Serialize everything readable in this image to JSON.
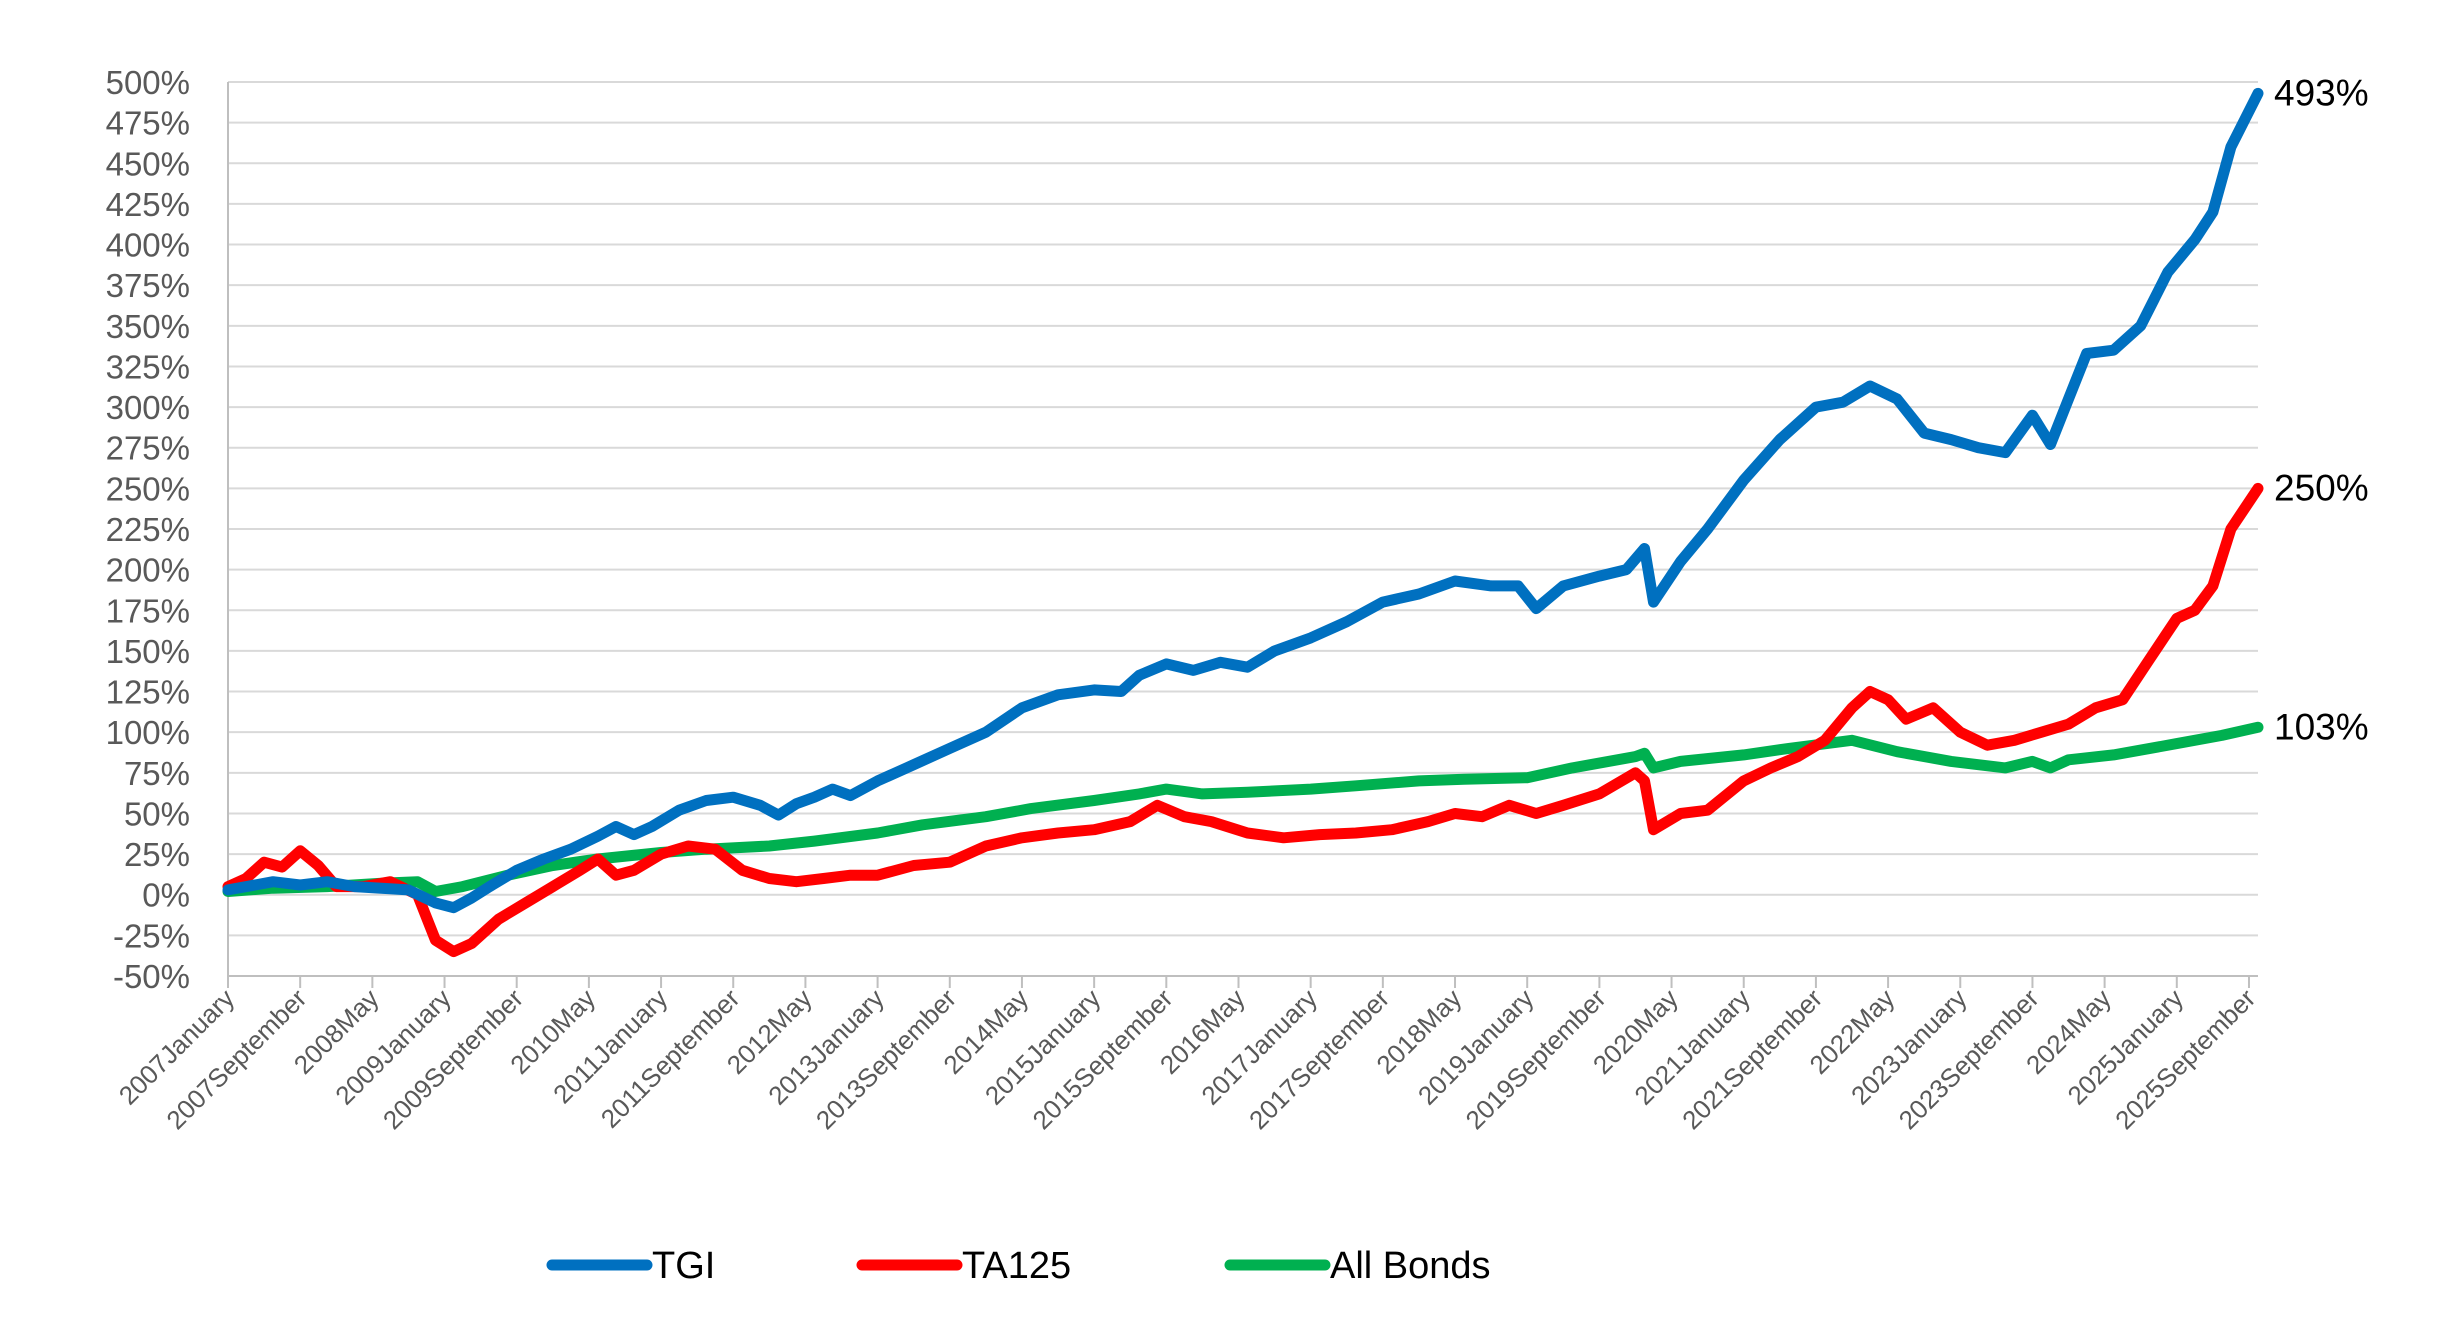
{
  "chart_data": {
    "type": "line",
    "title": "",
    "xlabel": "",
    "ylabel": "",
    "ylim": [
      -50,
      500
    ],
    "y_ticks": [
      "500%",
      "475%",
      "450%",
      "425%",
      "400%",
      "375%",
      "350%",
      "325%",
      "300%",
      "275%",
      "250%",
      "225%",
      "200%",
      "175%",
      "150%",
      "125%",
      "100%",
      "75%",
      "50%",
      "25%",
      "0%",
      "-25%",
      "-50%"
    ],
    "x_range": [
      "2007-01",
      "2025-10"
    ],
    "x_tick_labels": [
      "2007January",
      "2007September",
      "2008May",
      "2009January",
      "2009September",
      "2010May",
      "2011January",
      "2011September",
      "2012May",
      "2013January",
      "2013September",
      "2014May",
      "2015January",
      "2015September",
      "2016May",
      "2017January",
      "2017September",
      "2018May",
      "2019January",
      "2019September",
      "2020May",
      "2021January",
      "2021September",
      "2022May",
      "2023January",
      "2023September",
      "2024May",
      "2025January",
      "2025September"
    ],
    "grid": true,
    "legend_position": "bottom",
    "colors": {
      "TGI": "#0070C0",
      "TA125": "#FF0000",
      "All Bonds": "#00B050"
    },
    "series": [
      {
        "name": "TGI",
        "end_label": "493%",
        "points": [
          [
            "2007-01",
            3
          ],
          [
            "2007-06",
            8
          ],
          [
            "2007-09",
            6
          ],
          [
            "2007-12",
            8
          ],
          [
            "2008-03",
            5
          ],
          [
            "2008-06",
            4
          ],
          [
            "2008-09",
            3
          ],
          [
            "2008-12",
            -5
          ],
          [
            "2009-02",
            -8
          ],
          [
            "2009-04",
            -2
          ],
          [
            "2009-06",
            5
          ],
          [
            "2009-09",
            15
          ],
          [
            "2009-12",
            22
          ],
          [
            "2010-03",
            28
          ],
          [
            "2010-06",
            36
          ],
          [
            "2010-08",
            42
          ],
          [
            "2010-10",
            37
          ],
          [
            "2010-12",
            42
          ],
          [
            "2011-03",
            52
          ],
          [
            "2011-06",
            58
          ],
          [
            "2011-09",
            60
          ],
          [
            "2011-12",
            55
          ],
          [
            "2012-02",
            49
          ],
          [
            "2012-04",
            56
          ],
          [
            "2012-06",
            60
          ],
          [
            "2012-08",
            65
          ],
          [
            "2012-10",
            61
          ],
          [
            "2013-01",
            70
          ],
          [
            "2013-05",
            80
          ],
          [
            "2013-09",
            90
          ],
          [
            "2014-01",
            100
          ],
          [
            "2014-05",
            115
          ],
          [
            "2014-09",
            123
          ],
          [
            "2015-01",
            126
          ],
          [
            "2015-04",
            125
          ],
          [
            "2015-06",
            135
          ],
          [
            "2015-09",
            142
          ],
          [
            "2015-12",
            138
          ],
          [
            "2016-03",
            143
          ],
          [
            "2016-06",
            140
          ],
          [
            "2016-09",
            150
          ],
          [
            "2017-01",
            158
          ],
          [
            "2017-05",
            168
          ],
          [
            "2017-09",
            180
          ],
          [
            "2018-01",
            185
          ],
          [
            "2018-05",
            193
          ],
          [
            "2018-09",
            190
          ],
          [
            "2018-12",
            190
          ],
          [
            "2019-02",
            176
          ],
          [
            "2019-05",
            190
          ],
          [
            "2019-09",
            196
          ],
          [
            "2019-12",
            200
          ],
          [
            "2020-02",
            213
          ],
          [
            "2020-03",
            180
          ],
          [
            "2020-06",
            205
          ],
          [
            "2020-09",
            225
          ],
          [
            "2021-01",
            255
          ],
          [
            "2021-05",
            280
          ],
          [
            "2021-09",
            300
          ],
          [
            "2021-12",
            303
          ],
          [
            "2022-03",
            313
          ],
          [
            "2022-06",
            305
          ],
          [
            "2022-09",
            284
          ],
          [
            "2022-12",
            280
          ],
          [
            "2023-03",
            275
          ],
          [
            "2023-06",
            272
          ],
          [
            "2023-09",
            295
          ],
          [
            "2023-11",
            277
          ],
          [
            "2024-01",
            305
          ],
          [
            "2024-03",
            333
          ],
          [
            "2024-06",
            335
          ],
          [
            "2024-09",
            350
          ],
          [
            "2024-12",
            383
          ],
          [
            "2025-03",
            403
          ],
          [
            "2025-05",
            420
          ],
          [
            "2025-07",
            460
          ],
          [
            "2025-10",
            493
          ]
        ]
      },
      {
        "name": "TA125",
        "end_label": "250%",
        "points": [
          [
            "2007-01",
            5
          ],
          [
            "2007-03",
            10
          ],
          [
            "2007-05",
            20
          ],
          [
            "2007-07",
            17
          ],
          [
            "2007-09",
            27
          ],
          [
            "2007-11",
            18
          ],
          [
            "2008-01",
            5
          ],
          [
            "2008-04",
            5
          ],
          [
            "2008-07",
            8
          ],
          [
            "2008-10",
            0
          ],
          [
            "2008-12",
            -28
          ],
          [
            "2009-02",
            -35
          ],
          [
            "2009-04",
            -30
          ],
          [
            "2009-07",
            -15
          ],
          [
            "2009-10",
            -5
          ],
          [
            "2010-01",
            5
          ],
          [
            "2010-04",
            15
          ],
          [
            "2010-06",
            22
          ],
          [
            "2010-08",
            12
          ],
          [
            "2010-10",
            15
          ],
          [
            "2011-01",
            25
          ],
          [
            "2011-04",
            30
          ],
          [
            "2011-07",
            28
          ],
          [
            "2011-10",
            15
          ],
          [
            "2012-01",
            10
          ],
          [
            "2012-04",
            8
          ],
          [
            "2012-07",
            10
          ],
          [
            "2012-10",
            12
          ],
          [
            "2013-01",
            12
          ],
          [
            "2013-05",
            18
          ],
          [
            "2013-09",
            20
          ],
          [
            "2014-01",
            30
          ],
          [
            "2014-05",
            35
          ],
          [
            "2014-09",
            38
          ],
          [
            "2015-01",
            40
          ],
          [
            "2015-05",
            45
          ],
          [
            "2015-08",
            55
          ],
          [
            "2015-11",
            48
          ],
          [
            "2016-02",
            45
          ],
          [
            "2016-06",
            38
          ],
          [
            "2016-10",
            35
          ],
          [
            "2017-02",
            37
          ],
          [
            "2017-06",
            38
          ],
          [
            "2017-10",
            40
          ],
          [
            "2018-02",
            45
          ],
          [
            "2018-05",
            50
          ],
          [
            "2018-08",
            48
          ],
          [
            "2018-11",
            55
          ],
          [
            "2019-02",
            50
          ],
          [
            "2019-05",
            55
          ],
          [
            "2019-09",
            62
          ],
          [
            "2020-01",
            75
          ],
          [
            "2020-02",
            70
          ],
          [
            "2020-03",
            40
          ],
          [
            "2020-06",
            50
          ],
          [
            "2020-09",
            52
          ],
          [
            "2021-01",
            70
          ],
          [
            "2021-04",
            78
          ],
          [
            "2021-07",
            85
          ],
          [
            "2021-10",
            95
          ],
          [
            "2022-01",
            115
          ],
          [
            "2022-03",
            125
          ],
          [
            "2022-05",
            120
          ],
          [
            "2022-07",
            108
          ],
          [
            "2022-10",
            115
          ],
          [
            "2023-01",
            100
          ],
          [
            "2023-04",
            92
          ],
          [
            "2023-07",
            95
          ],
          [
            "2023-10",
            100
          ],
          [
            "2024-01",
            105
          ],
          [
            "2024-04",
            115
          ],
          [
            "2024-07",
            120
          ],
          [
            "2024-10",
            145
          ],
          [
            "2025-01",
            170
          ],
          [
            "2025-03",
            175
          ],
          [
            "2025-05",
            190
          ],
          [
            "2025-07",
            225
          ],
          [
            "2025-10",
            250
          ]
        ]
      },
      {
        "name": "All Bonds",
        "end_label": "103%",
        "points": [
          [
            "2007-01",
            2
          ],
          [
            "2007-06",
            4
          ],
          [
            "2007-12",
            5
          ],
          [
            "2008-06",
            7
          ],
          [
            "2008-10",
            8
          ],
          [
            "2008-12",
            2
          ],
          [
            "2009-03",
            5
          ],
          [
            "2009-08",
            12
          ],
          [
            "2010-01",
            18
          ],
          [
            "2010-06",
            22
          ],
          [
            "2011-01",
            26
          ],
          [
            "2011-06",
            28
          ],
          [
            "2012-01",
            30
          ],
          [
            "2012-06",
            33
          ],
          [
            "2013-01",
            38
          ],
          [
            "2013-06",
            43
          ],
          [
            "2014-01",
            48
          ],
          [
            "2014-06",
            53
          ],
          [
            "2015-01",
            58
          ],
          [
            "2015-06",
            62
          ],
          [
            "2015-09",
            65
          ],
          [
            "2016-01",
            62
          ],
          [
            "2016-06",
            63
          ],
          [
            "2017-01",
            65
          ],
          [
            "2017-06",
            67
          ],
          [
            "2018-01",
            70
          ],
          [
            "2018-06",
            71
          ],
          [
            "2019-01",
            72
          ],
          [
            "2019-06",
            78
          ],
          [
            "2020-01",
            85
          ],
          [
            "2020-02",
            87
          ],
          [
            "2020-03",
            78
          ],
          [
            "2020-06",
            82
          ],
          [
            "2021-01",
            86
          ],
          [
            "2021-06",
            90
          ],
          [
            "2022-01",
            95
          ],
          [
            "2022-06",
            88
          ],
          [
            "2022-12",
            82
          ],
          [
            "2023-03",
            80
          ],
          [
            "2023-06",
            78
          ],
          [
            "2023-09",
            82
          ],
          [
            "2023-11",
            78
          ],
          [
            "2024-01",
            83
          ],
          [
            "2024-06",
            86
          ],
          [
            "2025-01",
            93
          ],
          [
            "2025-06",
            98
          ],
          [
            "2025-10",
            103
          ]
        ]
      }
    ]
  }
}
